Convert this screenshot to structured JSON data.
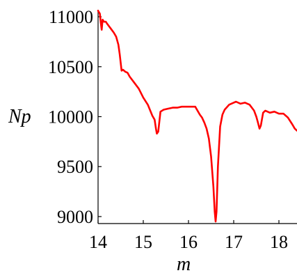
{
  "chart_data": {
    "type": "line",
    "xlabel": "m",
    "ylabel": "Np",
    "xlim": [
      14.0,
      18.4
    ],
    "ylim": [
      8930,
      11070
    ],
    "x_ticks": [
      14,
      15,
      16,
      17,
      18
    ],
    "y_ticks": [
      9000,
      9500,
      10000,
      10500,
      11000
    ],
    "x_tick_labels": [
      "14",
      "15",
      "16",
      "17",
      "18"
    ],
    "y_tick_labels": [
      "9000",
      "9500",
      "10000",
      "10500",
      "11000"
    ],
    "grid": false,
    "legend": "none",
    "series": [
      {
        "color": "#ff0000",
        "x": [
          14.0,
          14.04,
          14.06,
          14.08,
          14.1,
          14.13,
          14.17,
          14.2,
          14.25,
          14.3,
          14.35,
          14.4,
          14.45,
          14.48,
          14.5,
          14.52,
          14.55,
          14.6,
          14.65,
          14.7,
          14.8,
          14.9,
          15.0,
          15.1,
          15.2,
          15.25,
          15.28,
          15.3,
          15.33,
          15.38,
          15.45,
          15.55,
          15.65,
          15.75,
          15.85,
          15.95,
          16.05,
          16.15,
          16.25,
          16.3,
          16.35,
          16.4,
          16.45,
          16.5,
          16.55,
          16.58,
          16.6,
          16.62,
          16.65,
          16.7,
          16.75,
          16.8,
          16.9,
          17.0,
          17.05,
          17.15,
          17.25,
          17.35,
          17.45,
          17.5,
          17.53,
          17.57,
          17.6,
          17.65,
          17.7,
          17.8,
          17.9,
          18.0,
          18.1,
          18.2,
          18.3,
          18.35,
          18.4
        ],
        "y": [
          11060,
          11030,
          10940,
          10870,
          10970,
          10950,
          10950,
          10930,
          10900,
          10870,
          10840,
          10800,
          10720,
          10620,
          10540,
          10460,
          10470,
          10450,
          10440,
          10400,
          10340,
          10280,
          10190,
          10120,
          10010,
          9970,
          9880,
          9830,
          9850,
          10050,
          10070,
          10080,
          10090,
          10090,
          10100,
          10100,
          10100,
          10100,
          10020,
          9990,
          9940,
          9880,
          9780,
          9600,
          9300,
          9050,
          8950,
          9050,
          9500,
          9900,
          10020,
          10070,
          10120,
          10140,
          10150,
          10130,
          10140,
          10120,
          10060,
          10000,
          9950,
          9880,
          9910,
          10040,
          10060,
          10040,
          10050,
          10030,
          10030,
          9990,
          9920,
          9880,
          9860
        ]
      }
    ]
  }
}
